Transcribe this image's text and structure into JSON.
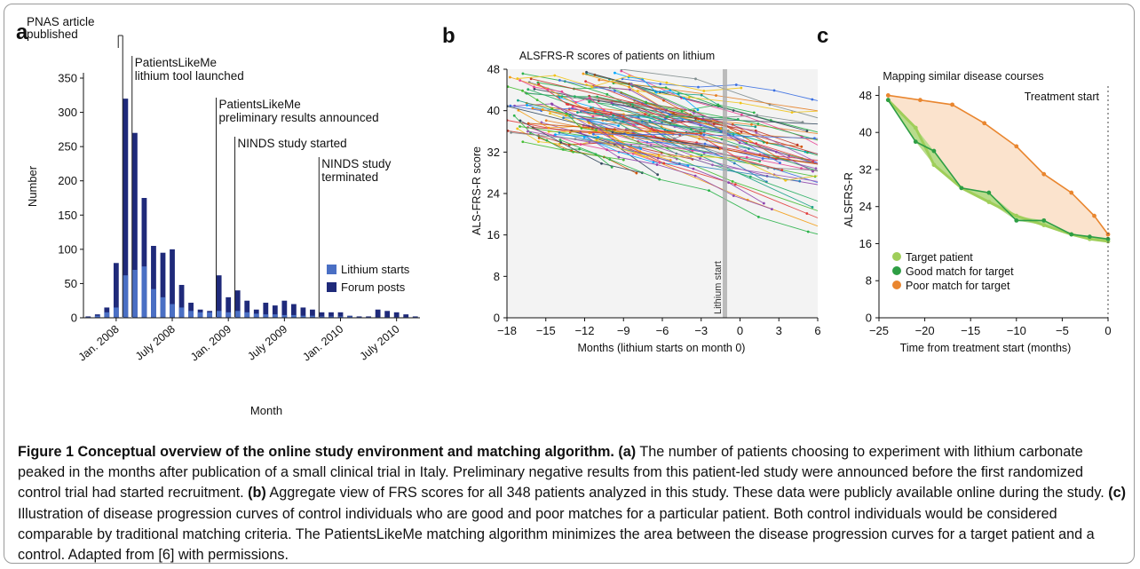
{
  "panel_letters": {
    "a": "a",
    "b": "b",
    "c": "c"
  },
  "chart_data": [
    {
      "type": "bar",
      "panel": "a",
      "xlabel": "Month",
      "ylabel": "Number",
      "ylim": [
        0,
        350
      ],
      "yticks": [
        0,
        50,
        100,
        150,
        200,
        250,
        300,
        350
      ],
      "xtick_labels": [
        "Jan. 2008",
        "July 2008",
        "Jan. 2009",
        "July 2009",
        "Jan. 2010",
        "July 2010"
      ],
      "legend_position": "bottom-right",
      "categories": [
        "Oct 2007",
        "Nov 2007",
        "Dec 2007",
        "Jan 2008",
        "Feb 2008",
        "Mar 2008",
        "Apr 2008",
        "May 2008",
        "Jun 2008",
        "Jul 2008",
        "Aug 2008",
        "Sep 2008",
        "Oct 2008",
        "Nov 2008",
        "Dec 2008",
        "Jan 2009",
        "Feb 2009",
        "Mar 2009",
        "Apr 2009",
        "May 2009",
        "Jun 2009",
        "Jul 2009",
        "Aug 2009",
        "Sep 2009",
        "Oct 2009",
        "Nov 2009",
        "Dec 2009",
        "Jan 2010",
        "Feb 2010",
        "Mar 2010",
        "Apr 2010",
        "May 2010",
        "Jun 2010",
        "Jul 2010",
        "Aug 2010",
        "Sep 2010"
      ],
      "series": [
        {
          "name": "Lithium starts",
          "color": "#4a6fc4",
          "values": [
            1,
            3,
            8,
            15,
            62,
            70,
            75,
            42,
            30,
            20,
            15,
            10,
            8,
            8,
            10,
            8,
            10,
            8,
            6,
            5,
            5,
            4,
            4,
            3,
            3,
            2,
            2,
            2,
            2,
            1,
            1,
            1,
            1,
            1,
            1,
            1
          ]
        },
        {
          "name": "Forum posts",
          "color": "#1f2a7a",
          "values": [
            2,
            5,
            15,
            80,
            320,
            270,
            175,
            105,
            95,
            100,
            48,
            22,
            12,
            10,
            62,
            30,
            40,
            25,
            12,
            22,
            18,
            25,
            20,
            15,
            12,
            8,
            8,
            8,
            3,
            2,
            2,
            12,
            10,
            8,
            5,
            2
          ]
        }
      ],
      "annotations": [
        {
          "x": "Feb 2008",
          "lines": [
            "PNAS article",
            "published"
          ]
        },
        {
          "x": "Mar 2008",
          "lines": [
            "PatientsLikeMe",
            "lithium tool launched"
          ]
        },
        {
          "x": "Dec 2008",
          "lines": [
            "PatientsLikeMe",
            "preliminary results announced"
          ]
        },
        {
          "x": "Feb 2009",
          "lines": [
            "NINDS study started"
          ]
        },
        {
          "x": "Nov 2009",
          "lines": [
            "NINDS study",
            "terminated"
          ]
        }
      ]
    },
    {
      "type": "line",
      "panel": "b",
      "title": "ALSFRS-R scores of patients on lithium",
      "xlabel": "Months (lithium starts on month 0)",
      "ylabel": "ALS-FRS-R score",
      "xlim": [
        -18,
        6
      ],
      "ylim": [
        0,
        48
      ],
      "xticks": [
        -18,
        -15,
        -12,
        -9,
        -6,
        -3,
        0,
        3,
        6
      ],
      "yticks": [
        0,
        8,
        16,
        24,
        32,
        40,
        48
      ],
      "marker_label": "Lithium start",
      "marker_x": 0,
      "series_count": 348
    },
    {
      "type": "line",
      "panel": "c",
      "title": "Mapping similar disease courses",
      "xlabel": "Time from treatment start (months)",
      "ylabel": "ALSFRS-R",
      "xlim": [
        -25,
        0
      ],
      "ylim": [
        0,
        50
      ],
      "xticks": [
        -25,
        -20,
        -15,
        -10,
        -5,
        0
      ],
      "yticks": [
        0,
        8,
        16,
        24,
        32,
        40,
        48
      ],
      "marker_label": "Treatment start",
      "marker_x": 0,
      "legend_position": "bottom-left",
      "series": [
        {
          "name": "Target patient",
          "color": "#9fce5a",
          "x": [
            -24,
            -21,
            -19,
            -16,
            -13,
            -10,
            -7,
            -4,
            -2,
            0
          ],
          "y": [
            47,
            41,
            33,
            28,
            25,
            22,
            20,
            18,
            17,
            16.5
          ]
        },
        {
          "name": "Good match for target",
          "color": "#2e9e44",
          "x": [
            -24,
            -21,
            -19,
            -16,
            -13,
            -10,
            -7,
            -4,
            -2,
            0
          ],
          "y": [
            47,
            38,
            36,
            28,
            27,
            21,
            21,
            18,
            17.5,
            17
          ]
        },
        {
          "name": "Poor match for target",
          "color": "#e9862f",
          "x": [
            -24,
            -20.5,
            -17,
            -13.5,
            -10,
            -7,
            -4,
            -1.5,
            0
          ],
          "y": [
            48,
            47,
            46,
            42,
            37,
            31,
            27,
            22,
            18
          ]
        }
      ]
    }
  ],
  "caption": {
    "bold": "Figure 1 Conceptual overview of the online study environment and matching algorithm.",
    "a_label": "(a)",
    "a_text": " The number of patients choosing to experiment with lithium carbonate peaked in the months after publication of a small clinical trial in Italy. Preliminary negative results from this patient-led study were announced before the first randomized control trial had started recruitment. ",
    "b_label": "(b)",
    "b_text": " Aggregate view of FRS scores for all 348 patients analyzed in this study. These data were publicly available online during the study. ",
    "c_label": "(c)",
    "c_text": " Illustration of disease progression curves of control individuals who are good and poor matches for a particular patient. Both control individuals would be considered comparable by traditional matching criteria. The PatientsLikeMe matching algorithm minimizes the area between the disease progression curves for a target patient and a control. Adapted from [6] with permissions."
  }
}
